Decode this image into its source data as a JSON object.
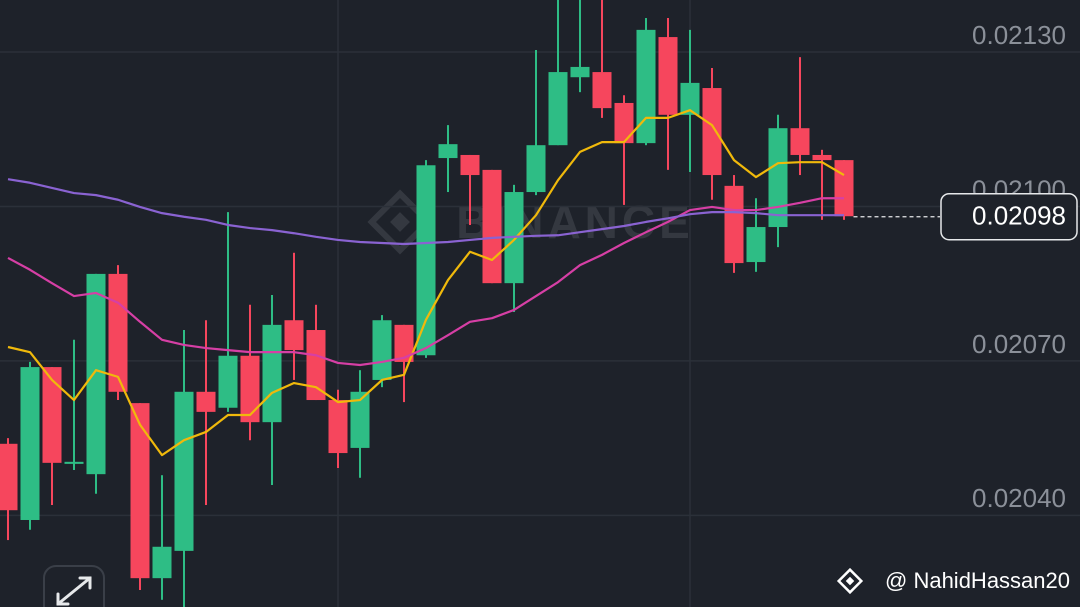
{
  "chart_data": {
    "type": "candlestick",
    "ylim": [
      0.020222,
      0.021401
    ],
    "yticks": [
      {
        "value": 0.0204,
        "label": "0.02040"
      },
      {
        "value": 0.0207,
        "label": "0.02070"
      },
      {
        "value": 0.021,
        "label": "0.02100"
      },
      {
        "value": 0.0213,
        "label": "0.02130"
      }
    ],
    "grid": true,
    "up_color": "#2ebd85",
    "down_color": "#f6465d",
    "open": [
      0.020539,
      0.020391,
      0.020688,
      0.0205,
      0.02048,
      0.020869,
      0.020618,
      0.020278,
      0.020331,
      0.02064,
      0.020609,
      0.02071,
      0.020581,
      0.020779,
      0.02076,
      0.020624,
      0.020531,
      0.020663,
      0.02077,
      0.020711,
      0.021094,
      0.0211,
      0.021071,
      0.020851,
      0.021028,
      0.021119,
      0.021251,
      0.021261,
      0.021201,
      0.021123,
      0.021329,
      0.021178,
      0.02123,
      0.02104,
      0.020892,
      0.02096,
      0.021152,
      0.0211,
      0.02109
    ],
    "high": [
      0.02055,
      0.020698,
      0.020688,
      0.020741,
      0.020869,
      0.020886,
      0.020618,
      0.020478,
      0.02076,
      0.020779,
      0.020989,
      0.020809,
      0.020828,
      0.02091,
      0.020809,
      0.020644,
      0.020682,
      0.020789,
      0.02077,
      0.02109,
      0.021158,
      0.0211,
      0.021071,
      0.021042,
      0.021304,
      0.021401,
      0.021401,
      0.021401,
      0.021216,
      0.021366,
      0.021366,
      0.021343,
      0.021269,
      0.021061,
      0.021016,
      0.021178,
      0.02129,
      0.02111,
      0.02109
    ],
    "low": [
      0.020352,
      0.020372,
      0.02042,
      0.020488,
      0.020442,
      0.020624,
      0.020255,
      0.020236,
      0.020222,
      0.02042,
      0.020601,
      0.020546,
      0.020459,
      0.020663,
      0.020624,
      0.020492,
      0.020473,
      0.020649,
      0.02062,
      0.020706,
      0.021028,
      0.020964,
      0.020851,
      0.020795,
      0.021022,
      0.021119,
      0.021222,
      0.021172,
      0.021003,
      0.021119,
      0.021071,
      0.021067,
      0.021013,
      0.020871,
      0.020873,
      0.020921,
      0.021061,
      0.020974,
      0.020974
    ],
    "close": [
      0.02041,
      0.020688,
      0.020502,
      0.020504,
      0.020869,
      0.02064,
      0.020278,
      0.020339,
      0.02064,
      0.020601,
      0.02071,
      0.020581,
      0.02077,
      0.020721,
      0.020624,
      0.020521,
      0.02064,
      0.020779,
      0.020698,
      0.02108,
      0.021121,
      0.021061,
      0.020851,
      0.021028,
      0.021119,
      0.021261,
      0.021271,
      0.021191,
      0.021123,
      0.021343,
      0.021178,
      0.02124,
      0.021061,
      0.02089,
      0.02096,
      0.021152,
      0.0211,
      0.02109,
      0.020981
    ],
    "series": [
      {
        "color": "#f0b90b",
        "values": [
          0.020727,
          0.020717,
          0.020663,
          0.020624,
          0.020682,
          0.020669,
          0.020576,
          0.020517,
          0.020546,
          0.020562,
          0.020595,
          0.020595,
          0.020638,
          0.020657,
          0.020649,
          0.02062,
          0.020624,
          0.020663,
          0.020673,
          0.02078,
          0.020857,
          0.020912,
          0.020896,
          0.020935,
          0.020983,
          0.021051,
          0.021106,
          0.021125,
          0.021125,
          0.021172,
          0.021172,
          0.021187,
          0.021158,
          0.02109,
          0.021057,
          0.021084,
          0.021086,
          0.021086,
          0.021061
        ]
      },
      {
        "color": "#d63fa5",
        "values": [
          0.0209,
          0.020877,
          0.020851,
          0.020826,
          0.020832,
          0.020813,
          0.020776,
          0.020741,
          0.020731,
          0.020725,
          0.020721,
          0.020717,
          0.020717,
          0.020717,
          0.020711,
          0.020696,
          0.020692,
          0.020698,
          0.020706,
          0.020725,
          0.02075,
          0.020776,
          0.020783,
          0.020799,
          0.020826,
          0.020853,
          0.020886,
          0.020906,
          0.020929,
          0.02095,
          0.02097,
          0.020993,
          0.020999,
          0.020993,
          0.020993,
          0.020999,
          0.021007,
          0.021016,
          0.021016
        ]
      },
      {
        "color": "#8a63d2",
        "values": [
          0.021053,
          0.021046,
          0.021036,
          0.021026,
          0.021022,
          0.021013,
          0.020999,
          0.020987,
          0.02098,
          0.020974,
          0.020964,
          0.020958,
          0.020954,
          0.020948,
          0.020941,
          0.020935,
          0.020931,
          0.020929,
          0.020927,
          0.020929,
          0.020931,
          0.020935,
          0.020939,
          0.020941,
          0.020943,
          0.020944,
          0.02095,
          0.020956,
          0.020962,
          0.02097,
          0.020977,
          0.020985,
          0.020989,
          0.020989,
          0.020987,
          0.020983,
          0.020983,
          0.020983,
          0.020983
        ]
      }
    ],
    "last_price": 0.02098,
    "watermark": "BINANCE",
    "credit": "@ NahidHassan20"
  }
}
